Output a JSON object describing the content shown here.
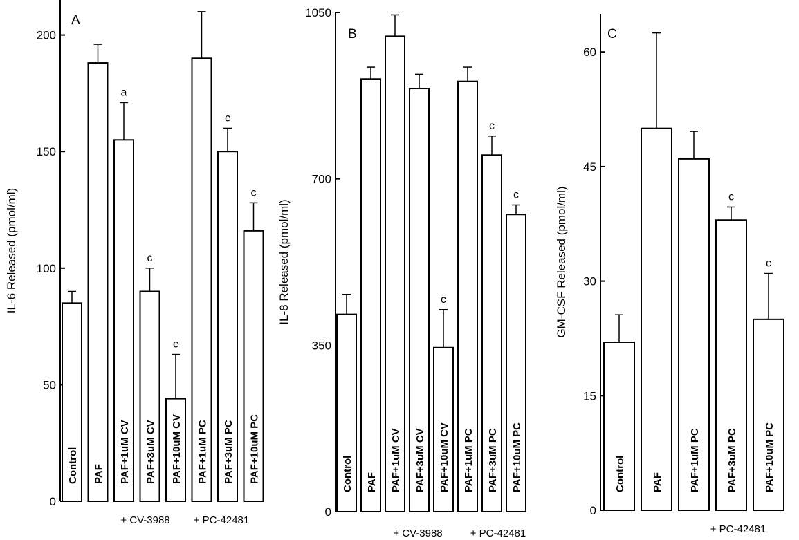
{
  "chart_data": [
    {
      "type": "bar",
      "panel": "A",
      "ylabel": "IL-6  Released  (pmol/ml)",
      "ylim": [
        0,
        215
      ],
      "yticks": [
        0,
        50,
        100,
        150,
        200
      ],
      "categories": [
        "Control",
        "PAF",
        "PAF+1uM CV",
        "PAF+3uM CV",
        "PAF+10uM CV",
        "PAF+1uM PC",
        "PAF+3uM PC",
        "PAF+10uM PC"
      ],
      "series": [
        {
          "values": [
            85,
            188,
            155,
            90,
            44,
            190,
            150,
            116
          ],
          "errors": [
            5,
            8,
            16,
            10,
            19,
            20,
            10,
            12
          ],
          "significance": [
            "",
            "",
            "a",
            "c",
            "c",
            "",
            "c",
            "c"
          ]
        }
      ],
      "groups": [
        {
          "label": "+ CV-3988",
          "categories": [
            "PAF+1uM CV",
            "PAF+3uM CV",
            "PAF+10uM CV"
          ]
        },
        {
          "label": "+ PC-42481",
          "categories": [
            "PAF+1uM PC",
            "PAF+3uM PC",
            "PAF+10uM PC"
          ]
        }
      ],
      "grid": false
    },
    {
      "type": "bar",
      "panel": "B",
      "ylabel": "IL-8  Released  (pmol/ml)",
      "ylim": [
        0,
        1050
      ],
      "yticks": [
        0,
        350,
        700,
        1050
      ],
      "categories": [
        "Control",
        "PAF",
        "PAF+1uM CV",
        "PAF+3uM CV",
        "PAF+10uM CV",
        "PAF+1uM PC",
        "PAF+3uM PC",
        "PAF+10uM PC"
      ],
      "series": [
        {
          "values": [
            415,
            910,
            1000,
            890,
            345,
            905,
            750,
            625
          ],
          "errors": [
            42,
            25,
            45,
            30,
            80,
            30,
            40,
            20
          ],
          "significance": [
            "",
            "",
            "",
            "",
            "c",
            "",
            "c",
            "c"
          ]
        }
      ],
      "groups": [
        {
          "label": "+ CV-3988",
          "categories": [
            "PAF+1uM CV",
            "PAF+3uM CV",
            "PAF+10uM CV"
          ]
        },
        {
          "label": "+ PC-42481",
          "categories": [
            "PAF+1uM PC",
            "PAF+3uM PC",
            "PAF+10uM PC"
          ]
        }
      ],
      "grid": false
    },
    {
      "type": "bar",
      "panel": "C",
      "ylabel": "GM-CSF  Released  (pmol/ml)",
      "ylim": [
        0,
        65
      ],
      "yticks": [
        0,
        15,
        30,
        45,
        60
      ],
      "categories": [
        "Control",
        "PAF",
        "PAF+1uM PC",
        "PAF+3uM PC",
        "PAF+10uM PC"
      ],
      "series": [
        {
          "values": [
            22,
            50,
            46,
            38,
            25
          ],
          "errors": [
            3.6,
            12.5,
            3.6,
            1.7,
            6
          ],
          "significance": [
            "",
            "",
            "",
            "c",
            "c"
          ]
        }
      ],
      "groups": [
        {
          "label": "+ PC-42481",
          "categories": [
            "PAF+1uM PC",
            "PAF+3uM PC",
            "PAF+10uM PC"
          ]
        }
      ],
      "grid": false
    }
  ]
}
